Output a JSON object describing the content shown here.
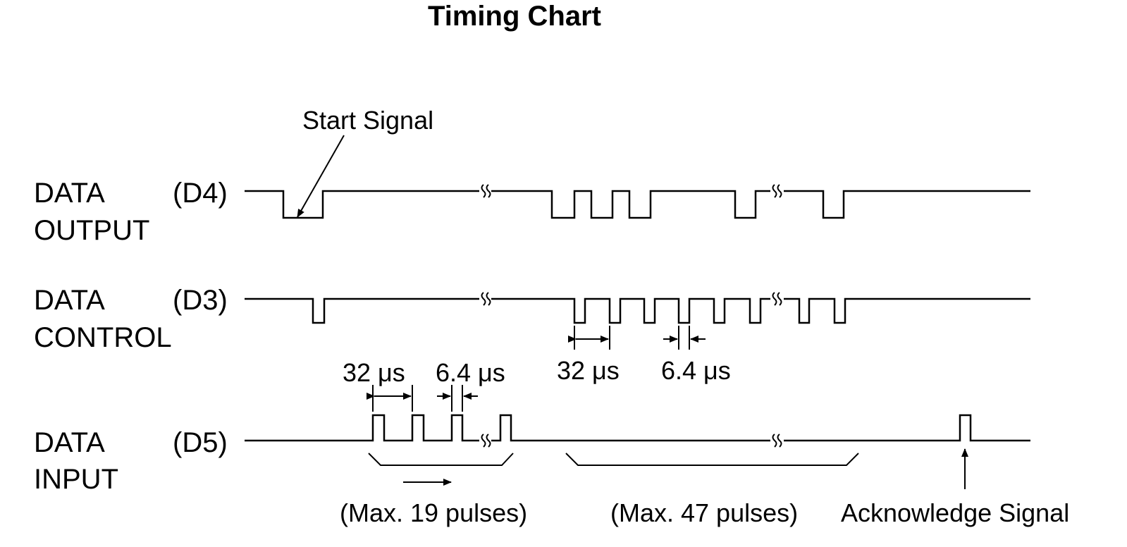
{
  "title": "Timing Chart",
  "signals": {
    "output": {
      "line1": "DATA",
      "line2": "OUTPUT",
      "pin": "(D4)"
    },
    "control": {
      "line1": "DATA",
      "line2": "CONTROL",
      "pin": "(D3)"
    },
    "input": {
      "line1": "DATA",
      "line2": "INPUT",
      "pin": "(D5)"
    }
  },
  "annotations": {
    "start_signal": "Start Signal",
    "acknowledge_signal": "Acknowledge Signal",
    "period_input": "32 μs",
    "pulse_input": "6.4 μs",
    "period_control": "32 μs",
    "pulse_control": "6.4 μs",
    "max_19": "(Max. 19 pulses)",
    "max_47": "(Max. 47 pulses)"
  }
}
